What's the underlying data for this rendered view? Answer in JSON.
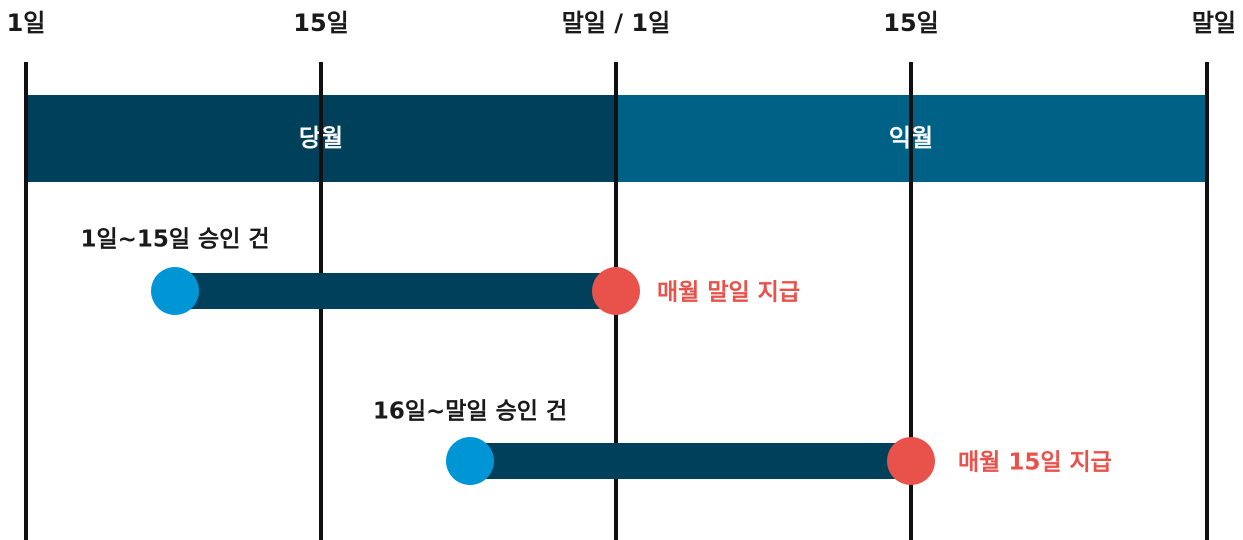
{
  "timeline": {
    "ticks": [
      "1일",
      "15일",
      "말일 / 1일",
      "15일",
      "말일"
    ]
  },
  "periods": [
    {
      "label": "당월"
    },
    {
      "label": "익월"
    }
  ],
  "schedules": [
    {
      "label": "1일~15일 승인 건",
      "payout": "매월 말일 지급"
    },
    {
      "label": "16일~말일 승인 건",
      "payout": "매월 15일 지급"
    }
  ]
}
